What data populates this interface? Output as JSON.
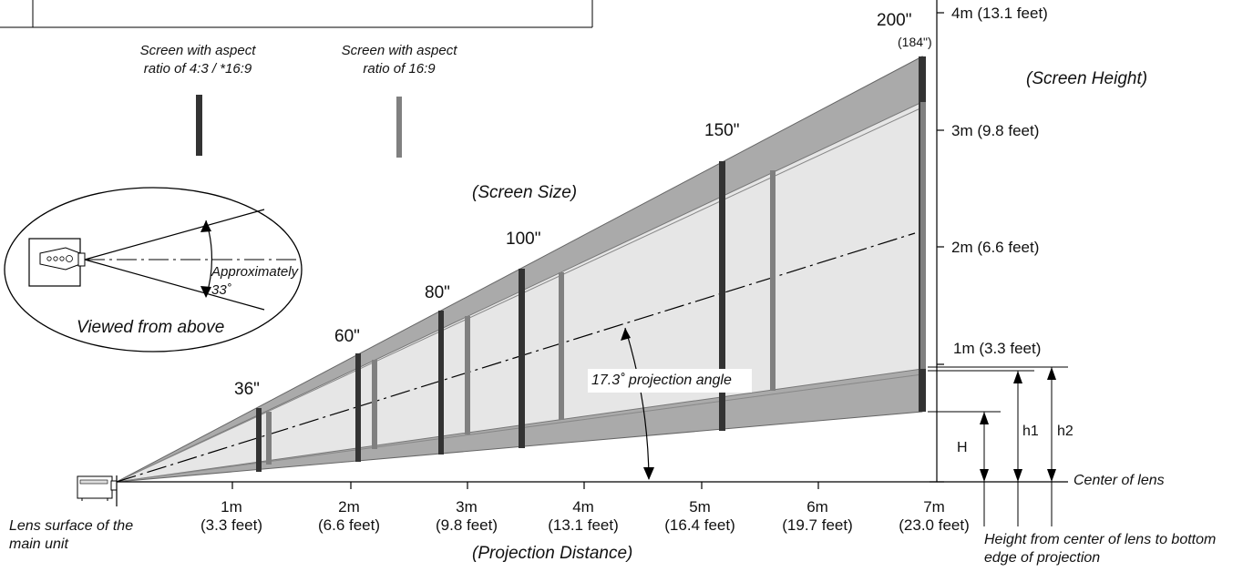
{
  "legend": {
    "aspect_43": "Screen with aspect ratio of 4:3 / *16:9",
    "aspect_43_line1": "Screen with aspect",
    "aspect_43_line2": "ratio of 4:3 / *16:9",
    "aspect_169_line1": "Screen with aspect",
    "aspect_169_line2": "ratio of 16:9",
    "color_43": "#333333",
    "color_169": "#808080"
  },
  "inset": {
    "approx_line1": "Approximately",
    "approx_line2": "33˚",
    "caption": "Viewed from above"
  },
  "screen_size_label": "(Screen Size)",
  "screen_height_label": "(Screen Height)",
  "projection_distance_label": "(Projection Distance)",
  "projection_angle_label": "17.3˚ projection angle",
  "screen_sizes": [
    "36\"",
    "60\"",
    "80\"",
    "100\"",
    "150\"",
    "200\""
  ],
  "size_200_169": "(184\")",
  "height_ticks": [
    "4m (13.1 feet)",
    "3m (9.8 feet)",
    "2m (6.6 feet)",
    "1m (3.3 feet)"
  ],
  "distance_ticks": [
    {
      "m": "1m",
      "ft": "(3.3 feet)"
    },
    {
      "m": "2m",
      "ft": "(6.6 feet)"
    },
    {
      "m": "3m",
      "ft": "(9.8 feet)"
    },
    {
      "m": "4m",
      "ft": "(13.1 feet)"
    },
    {
      "m": "5m",
      "ft": "(16.4 feet)"
    },
    {
      "m": "6m",
      "ft": "(19.7 feet)"
    },
    {
      "m": "7m",
      "ft": "(23.0 feet)"
    }
  ],
  "lens_surface_line1": "Lens surface of the",
  "lens_surface_line2": "main unit",
  "center_of_lens": "Center of lens",
  "height_from_line1": "Height from center of lens to bottom",
  "height_from_line2": "edge of projection",
  "dim_H": "H",
  "dim_h1": "h1",
  "dim_h2": "h2"
}
